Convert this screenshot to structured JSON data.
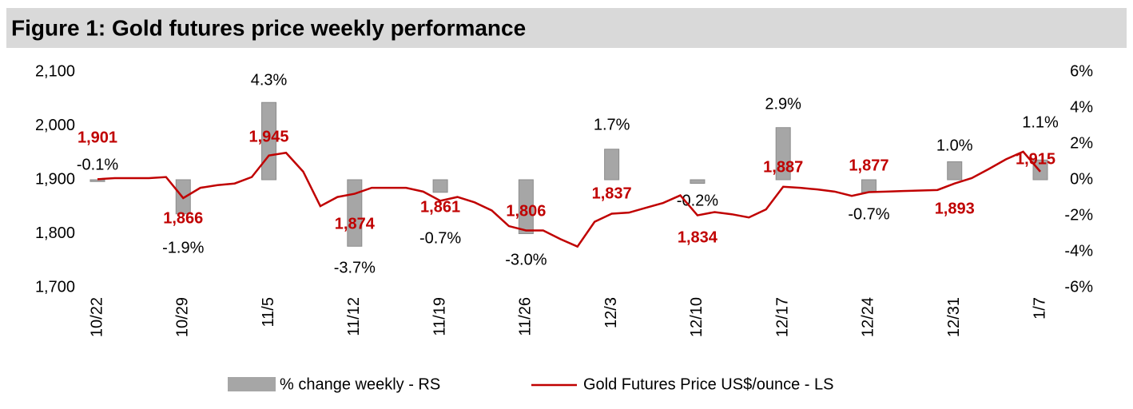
{
  "chart_data": {
    "type": "bar-line",
    "title": "Figure 1: Gold futures price weekly performance",
    "categories": [
      "10/22",
      null,
      null,
      null,
      null,
      "10/29",
      null,
      null,
      null,
      null,
      "11/5",
      null,
      null,
      null,
      null,
      "11/12",
      null,
      null,
      null,
      null,
      "11/19",
      null,
      null,
      null,
      null,
      "11/26",
      null,
      null,
      null,
      null,
      "12/3",
      null,
      null,
      null,
      null,
      "12/10",
      null,
      null,
      null,
      null,
      "12/17",
      null,
      null,
      null,
      null,
      "12/24",
      null,
      null,
      null,
      null,
      "12/31",
      null,
      null,
      null,
      null,
      "1/7"
    ],
    "series": [
      {
        "name": "% change weekly - RS",
        "type": "bar",
        "axis": "y2",
        "color": "#a6a6a6",
        "values": [
          -0.1,
          null,
          null,
          null,
          null,
          -1.9,
          null,
          null,
          null,
          null,
          4.3,
          null,
          null,
          null,
          null,
          -3.7,
          null,
          null,
          null,
          null,
          -0.7,
          null,
          null,
          null,
          null,
          -3.0,
          null,
          null,
          null,
          null,
          1.7,
          null,
          null,
          null,
          null,
          -0.2,
          null,
          null,
          null,
          null,
          2.9,
          null,
          null,
          null,
          null,
          -0.7,
          null,
          null,
          null,
          null,
          1.0,
          null,
          null,
          null,
          null,
          1.1
        ],
        "value_labels": [
          "-0.1%",
          null,
          null,
          null,
          null,
          "-1.9%",
          null,
          null,
          null,
          null,
          "4.3%",
          null,
          null,
          null,
          null,
          "-3.7%",
          null,
          null,
          null,
          null,
          "-0.7%",
          null,
          null,
          null,
          null,
          "-3.0%",
          null,
          null,
          null,
          null,
          "1.7%",
          null,
          null,
          null,
          null,
          "-0.2%",
          null,
          null,
          null,
          null,
          "2.9%",
          null,
          null,
          null,
          null,
          "-0.7%",
          null,
          null,
          null,
          null,
          "1.0%",
          null,
          null,
          null,
          null,
          "1.1%"
        ]
      },
      {
        "name": "Gold Futures Price US$/ounce - LS",
        "type": "line",
        "color": "#c00000",
        "values": [
          1901,
          1903,
          1903,
          1903,
          1905,
          1866,
          1885,
          1890,
          1893,
          1905,
          1945,
          1950,
          1915,
          1851,
          1868,
          1874,
          1885,
          1885,
          1885,
          1878,
          1861,
          1868,
          1858,
          1843,
          1814,
          1806,
          1806,
          1790,
          1776,
          1822,
          1837,
          1839,
          1848,
          1857,
          1871,
          1834,
          1840,
          1836,
          1830,
          1845,
          1887,
          1885,
          1882,
          1878,
          1870,
          1877,
          1878,
          1879,
          1880,
          1881,
          1893,
          1903,
          1920,
          1938,
          1952,
          1915
        ],
        "value_labels": [
          "1,901",
          null,
          null,
          null,
          null,
          "1,866",
          null,
          null,
          null,
          null,
          "1,945",
          null,
          null,
          null,
          null,
          "1,874",
          null,
          null,
          null,
          null,
          "1,861",
          null,
          null,
          null,
          null,
          "1,806",
          null,
          null,
          null,
          null,
          "1,837",
          null,
          null,
          null,
          null,
          "1,834",
          null,
          null,
          null,
          null,
          "1,887",
          null,
          null,
          null,
          null,
          "1,877",
          null,
          null,
          null,
          null,
          "1,893",
          null,
          null,
          null,
          null,
          "1,915"
        ]
      }
    ],
    "ylim": [
      1700,
      2100
    ],
    "yticks": [
      {
        "value": 1700,
        "label": "1,700"
      },
      {
        "value": 1800,
        "label": "1,800"
      },
      {
        "value": 1900,
        "label": "1,900"
      },
      {
        "value": 2000,
        "label": "2,000"
      },
      {
        "value": 2100,
        "label": "2,100"
      }
    ],
    "y2lim": [
      -6,
      6
    ],
    "y2ticks": [
      {
        "value": -6,
        "label": "-6%"
      },
      {
        "value": -4,
        "label": "-4%"
      },
      {
        "value": -2,
        "label": "-2%"
      },
      {
        "value": 0,
        "label": "0%"
      },
      {
        "value": 2,
        "label": "2%"
      },
      {
        "value": 4,
        "label": "4%"
      },
      {
        "value": 6,
        "label": "6%"
      }
    ],
    "grid": false
  }
}
